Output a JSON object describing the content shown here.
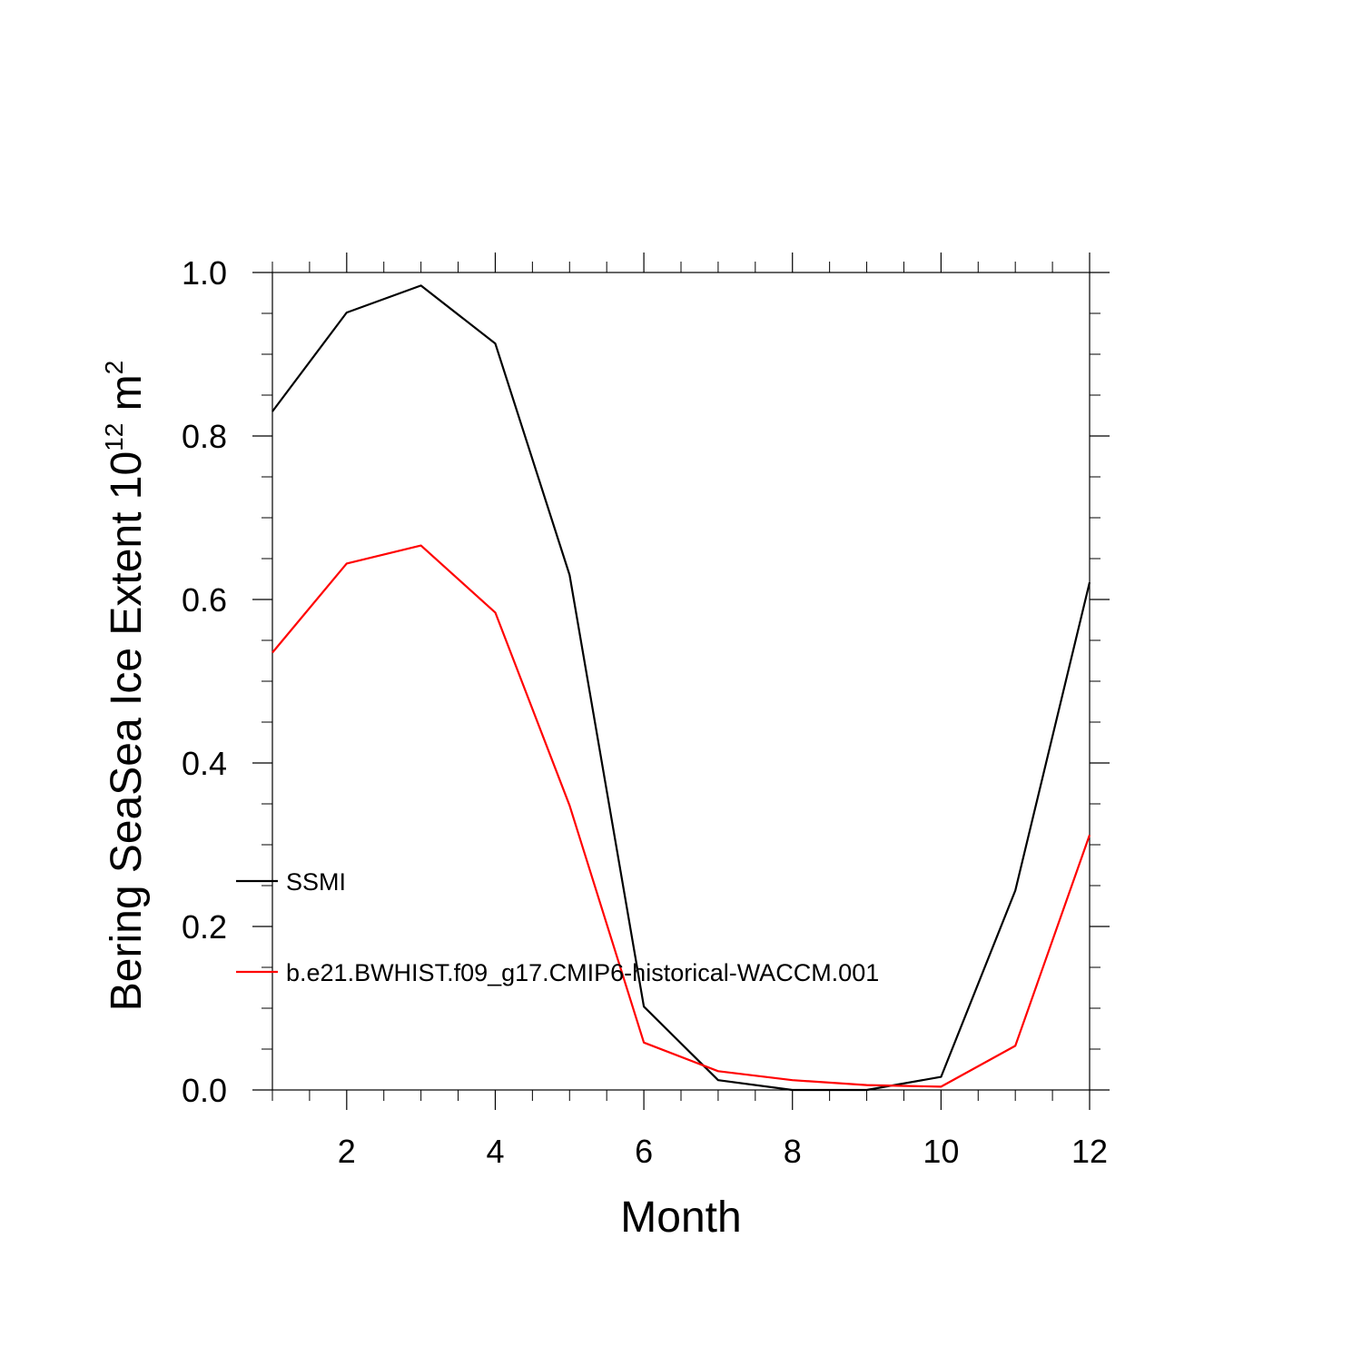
{
  "chart_data": {
    "type": "line",
    "xlabel": "Month",
    "ylabel": {
      "main": "Bering SeaSea Ice Extent 10",
      "exponent": "12",
      "unit": " m",
      "unit_exponent": "2"
    },
    "xlim": [
      1,
      12
    ],
    "ylim": [
      0.0,
      1.0
    ],
    "x_ticks": [
      2,
      4,
      6,
      8,
      10,
      12
    ],
    "x_tick_labels": [
      "2",
      "4",
      "6",
      "8",
      "10",
      "12"
    ],
    "y_ticks": [
      0.0,
      0.2,
      0.4,
      0.6,
      0.8,
      1.0
    ],
    "y_tick_labels": [
      "0.0",
      "0.2",
      "0.4",
      "0.6",
      "0.8",
      "1.0"
    ],
    "grid": false,
    "legend_placement": "lower-left inside",
    "x": [
      1,
      2,
      3,
      4,
      5,
      6,
      7,
      8,
      9,
      10,
      11,
      12
    ],
    "series": [
      {
        "name": "SSMI",
        "color": "#000000",
        "values": [
          0.83,
          0.951,
          0.984,
          0.913,
          0.63,
          0.102,
          0.012,
          0.0,
          0.0,
          0.016,
          0.244,
          0.621
        ]
      },
      {
        "name": "b.e21.BWHIST.f09_g17.CMIP6-historical-WACCM.001",
        "color": "#ff0000",
        "values": [
          0.535,
          0.644,
          0.666,
          0.584,
          0.348,
          0.058,
          0.023,
          0.012,
          0.006,
          0.004,
          0.054,
          0.312
        ]
      }
    ]
  }
}
